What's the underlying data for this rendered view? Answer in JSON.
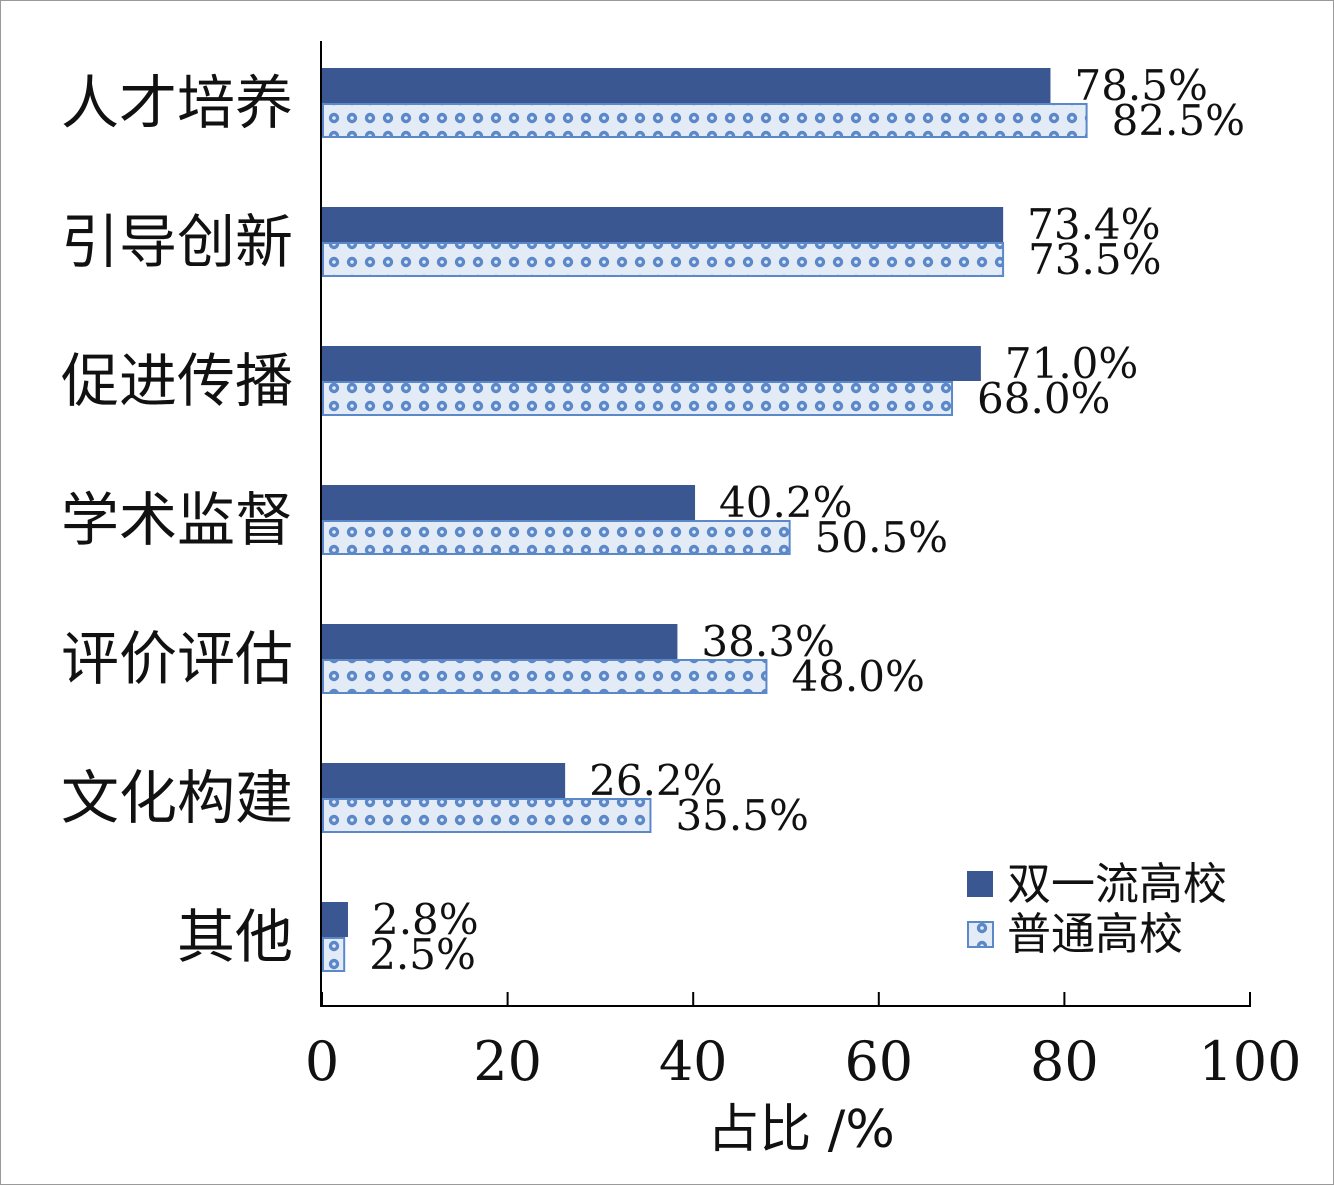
{
  "chart_data": {
    "type": "bar",
    "orientation": "horizontal",
    "categories": [
      "人才培养",
      "引导创新",
      "促进传播",
      "学术监督",
      "评价评估",
      "文化构建",
      "其他"
    ],
    "series": [
      {
        "name": "双一流高校",
        "color": "#3b5792",
        "values": [
          78.5,
          73.4,
          71.0,
          40.2,
          38.3,
          26.2,
          2.8
        ],
        "labels": [
          "78.5%",
          "73.4%",
          "71.0%",
          "40.2%",
          "38.3%",
          "26.2%",
          "2.8%"
        ]
      },
      {
        "name": "普通高校",
        "color": "#5b88c8",
        "pattern": "dotted",
        "values": [
          82.5,
          73.5,
          68.0,
          50.5,
          48.0,
          35.5,
          2.5
        ],
        "labels": [
          "82.5%",
          "73.5%",
          "68.0%",
          "50.5%",
          "48.0%",
          "35.5%",
          "2.5%"
        ]
      }
    ],
    "xlabel": "占比 /%",
    "xlim": [
      0,
      100
    ],
    "xticks": [
      0,
      20,
      40,
      60,
      80,
      100
    ],
    "xtick_labels": [
      "0",
      "20",
      "40",
      "60",
      "80",
      "100"
    ],
    "legend_position": "bottom-right",
    "grid": false
  }
}
